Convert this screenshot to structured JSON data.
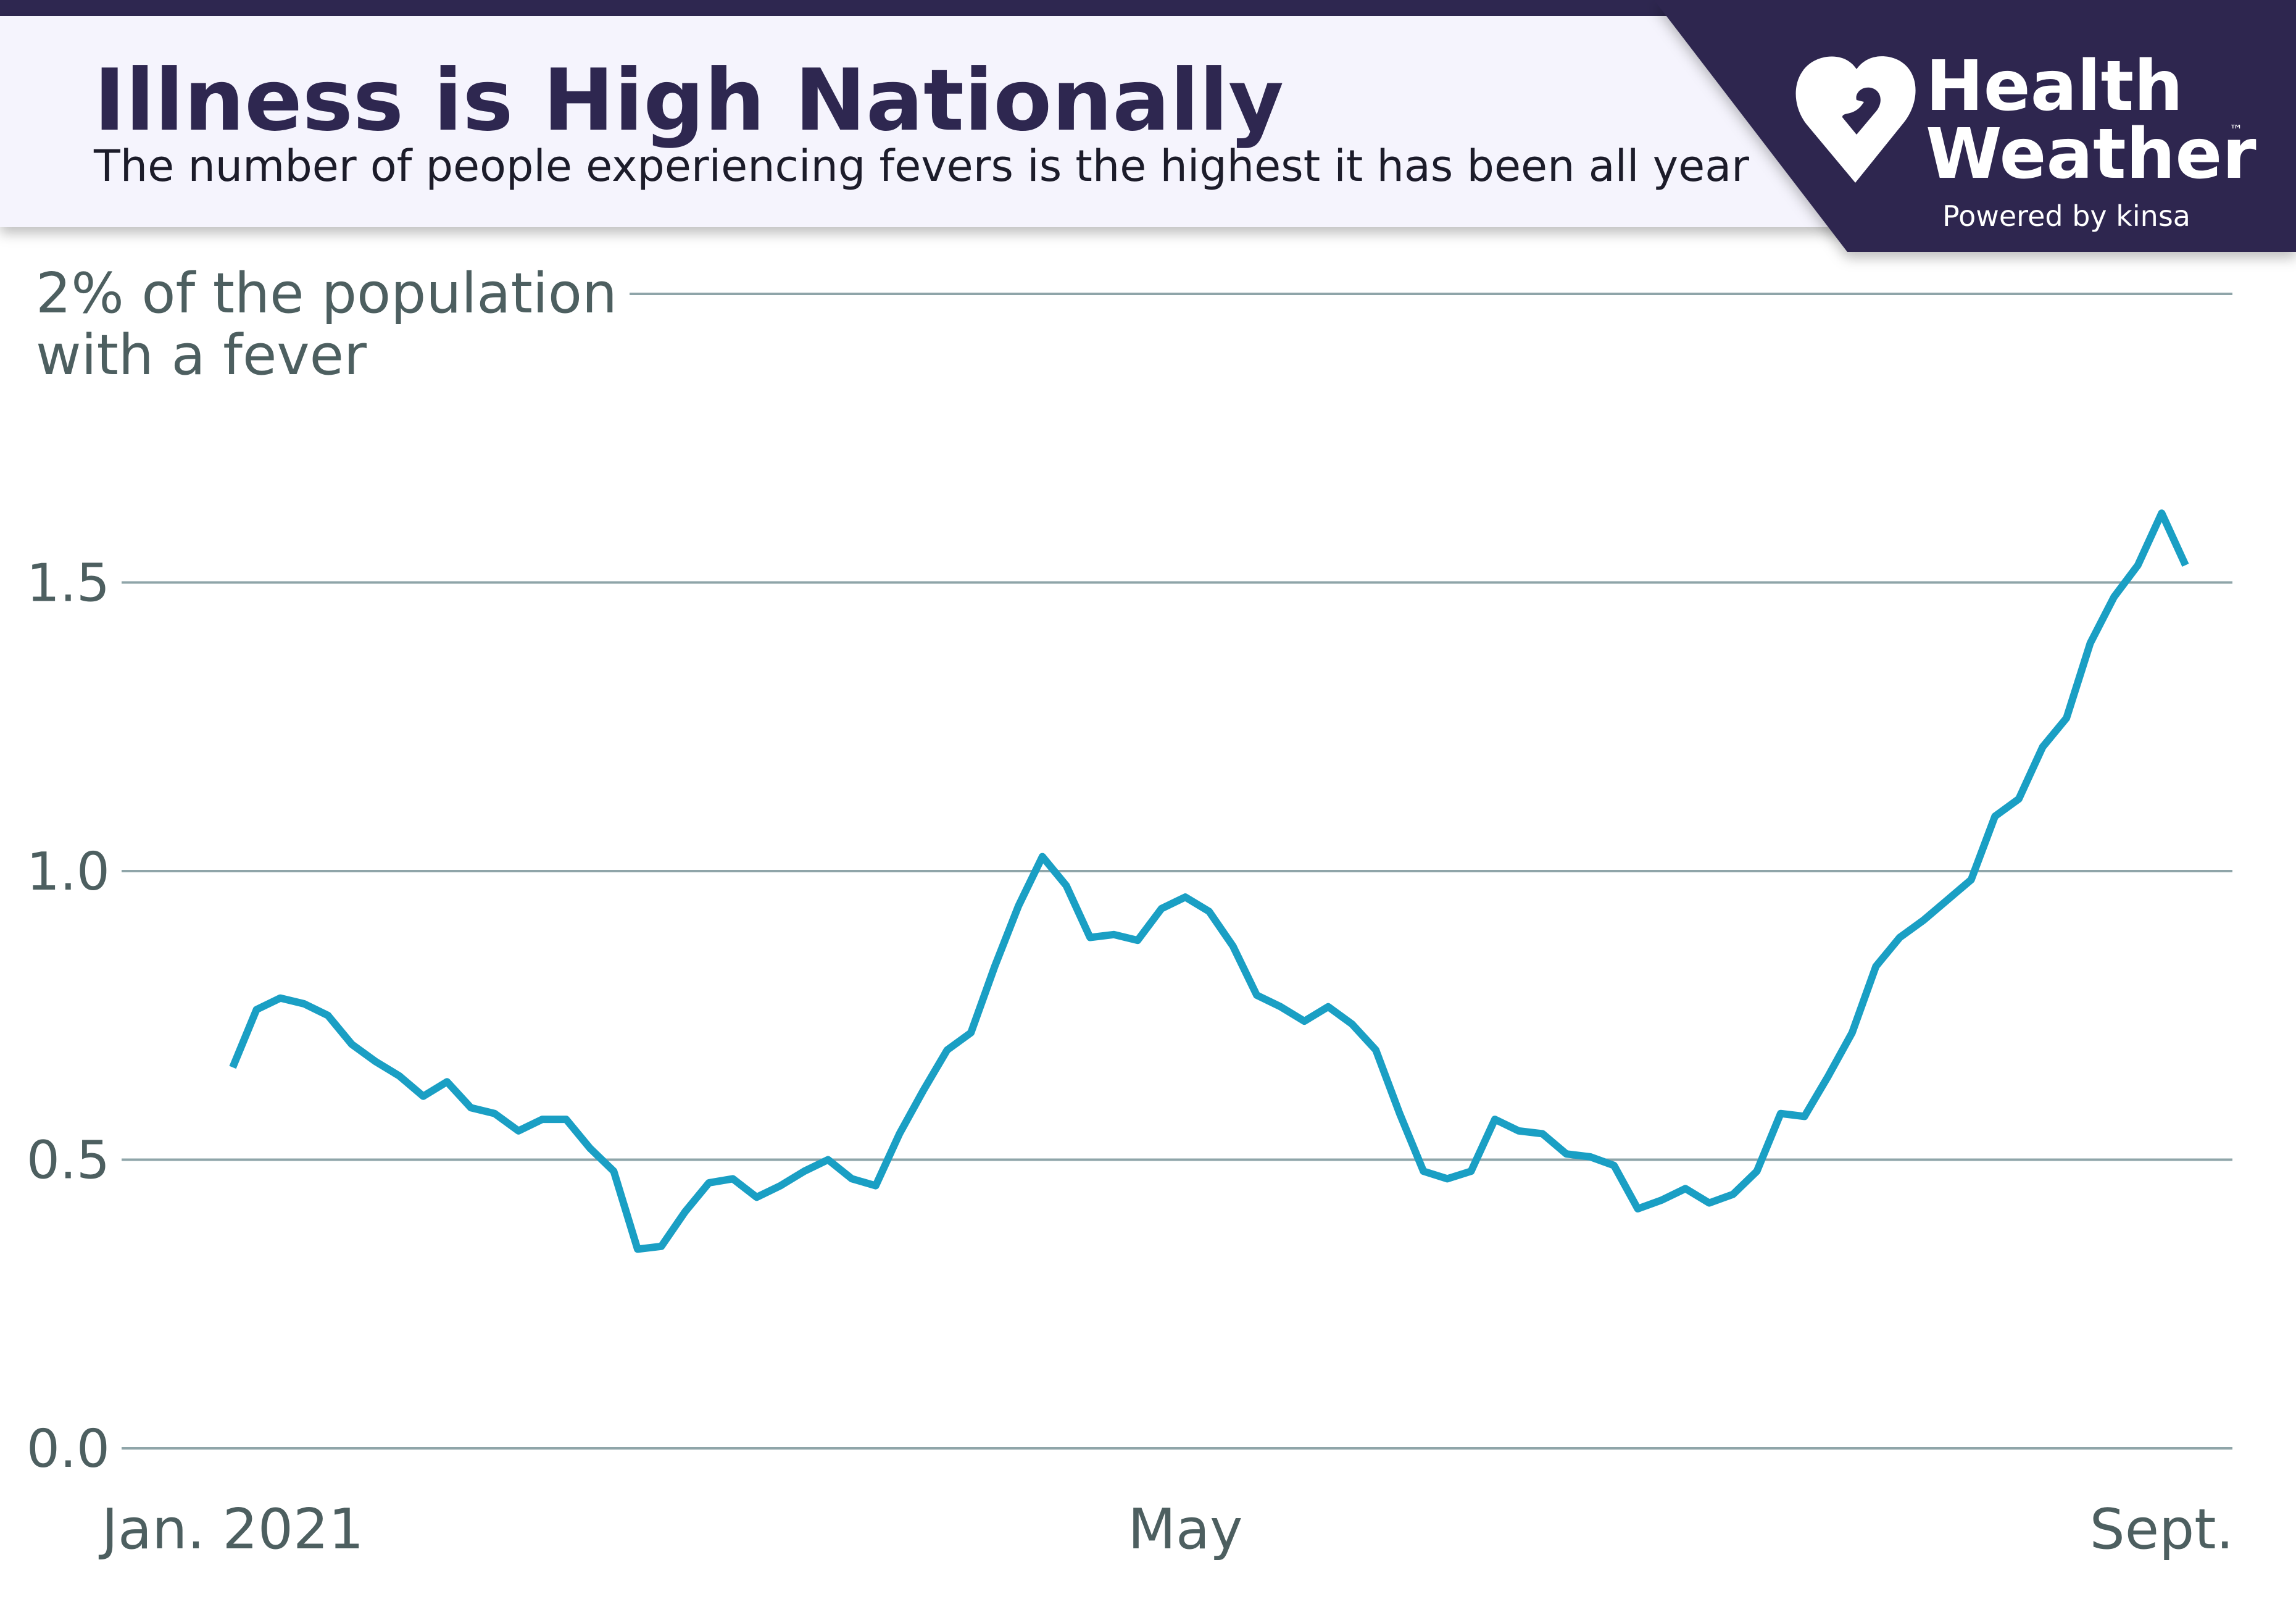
{
  "header": {
    "title": "Illness is High Nationally",
    "subtitle": "The number of people experiencing fevers is the highest it has been all year"
  },
  "logo": {
    "line1": "Health",
    "line2": "Weather",
    "tm": "™",
    "tagline": "Powered by kinsa"
  },
  "chart_data": {
    "type": "line",
    "y_label": "with a fever",
    "categories": [
      "Jan. 2021",
      null,
      null,
      null,
      null,
      null,
      null,
      null,
      null,
      null,
      null,
      null,
      null,
      null,
      null,
      null,
      null,
      null,
      null,
      null,
      null,
      null,
      null,
      null,
      null,
      null,
      null,
      null,
      null,
      null,
      null,
      null,
      null,
      null,
      null,
      null,
      null,
      null,
      null,
      null,
      "May",
      null,
      null,
      null,
      null,
      null,
      null,
      null,
      null,
      null,
      null,
      null,
      null,
      null,
      null,
      null,
      null,
      null,
      null,
      null,
      null,
      null,
      null,
      null,
      null,
      null,
      null,
      null,
      null,
      null,
      null,
      null,
      null,
      null,
      null,
      null,
      null,
      null,
      null,
      null,
      null,
      "Sept.",
      null
    ],
    "series": [
      {
        "name": "Fever",
        "color": "#1a9fc4",
        "values": [
          0.66,
          0.76,
          0.78,
          0.77,
          0.75,
          0.7,
          0.67,
          0.645,
          0.61,
          0.635,
          0.59,
          0.58,
          0.55,
          0.57,
          0.57,
          0.52,
          0.48,
          0.345,
          0.35,
          0.41,
          0.46,
          0.467,
          0.435,
          0.455,
          0.48,
          0.5,
          0.467,
          0.455,
          0.545,
          0.62,
          0.69,
          0.72,
          0.835,
          0.94,
          1.025,
          0.975,
          0.885,
          0.89,
          0.88,
          0.935,
          0.955,
          0.93,
          0.87,
          0.785,
          0.765,
          0.74,
          0.765,
          0.735,
          0.69,
          0.58,
          0.48,
          0.467,
          0.48,
          0.57,
          0.55,
          0.545,
          0.51,
          0.505,
          0.49,
          0.415,
          0.43,
          0.45,
          0.425,
          0.44,
          0.48,
          0.58,
          0.575,
          0.645,
          0.72,
          0.835,
          0.885,
          0.915,
          0.95,
          0.985,
          1.095,
          1.125,
          1.215,
          1.265,
          1.395,
          1.475,
          1.53,
          1.62,
          1.53
        ]
      }
    ],
    "ylim": [
      0,
      2
    ],
    "yticks": [
      {
        "value": 0,
        "label": "0.0"
      },
      0.5,
      {
        "value": 1,
        "label": "1.0"
      },
      1.5,
      {
        "value": 2,
        "label": "2% of the population"
      }
    ],
    "grid": true
  }
}
